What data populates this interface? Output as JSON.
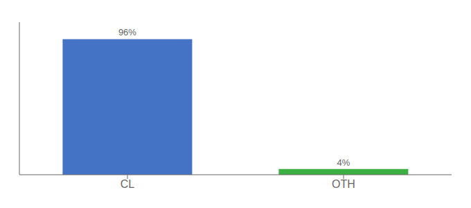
{
  "chart_data": {
    "type": "bar",
    "categories": [
      "CL",
      "OTH"
    ],
    "values": [
      96,
      4
    ],
    "value_labels": [
      "96%",
      "4%"
    ],
    "colors": [
      "#4472c4",
      "#3cb043"
    ],
    "ylim": [
      0,
      108
    ],
    "data_labels": true,
    "tick_labels": "x",
    "grid": false
  }
}
